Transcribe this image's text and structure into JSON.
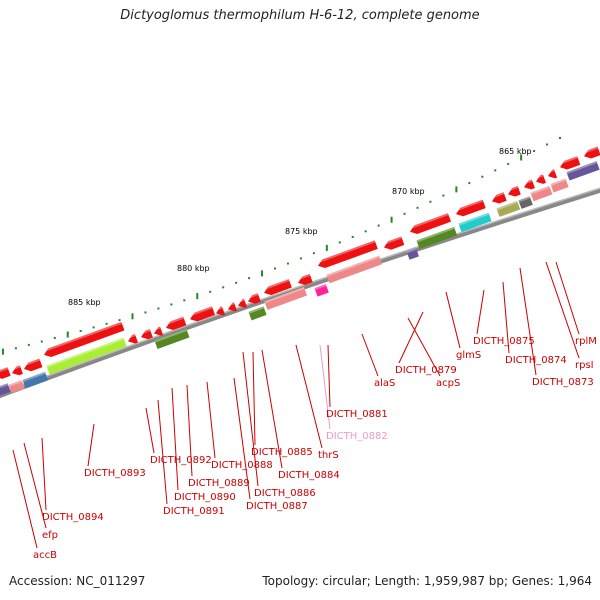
{
  "title": "Dictyoglomus thermophilum H-6-12, complete genome",
  "accession": "Accession: NC_011297",
  "summary": "Topology: circular; Length: 1,959,987 bp; Genes: 1,964",
  "scale_labels": [
    "865 kbp",
    "870 kbp",
    "875 kbp",
    "880 kbp",
    "885 kbp"
  ],
  "colors": {
    "backbone": "#888888",
    "gene_red": "#ee1111",
    "gene_pink": "#ee8888",
    "gene_lime": "#aaee33",
    "gene_green": "#558822",
    "gene_cyan": "#22cccc",
    "gene_purple": "#665599",
    "gene_olive": "#aaaa55",
    "gene_magenta": "#ff2299",
    "gene_blue": "#4477aa",
    "label_red": "#cc0000",
    "label_pink": "#ee99cc",
    "tick_green": "#228822"
  },
  "gene_labels": [
    {
      "text": "rplM"
    },
    {
      "text": "rpsI"
    },
    {
      "text": "DICTH_0873"
    },
    {
      "text": "DICTH_0874"
    },
    {
      "text": "DICTH_0875"
    },
    {
      "text": "glmS"
    },
    {
      "text": "DICTH_0879"
    },
    {
      "text": "acpS"
    },
    {
      "text": "alaS"
    },
    {
      "text": "DICTH_0881"
    },
    {
      "text": "DICTH_0882"
    },
    {
      "text": "thrS"
    },
    {
      "text": "DICTH_0884"
    },
    {
      "text": "DICTH_0885"
    },
    {
      "text": "DICTH_0886"
    },
    {
      "text": "DICTH_0887"
    },
    {
      "text": "DICTH_0888"
    },
    {
      "text": "DICTH_0889"
    },
    {
      "text": "DICTH_0890"
    },
    {
      "text": "DICTH_0891"
    },
    {
      "text": "DICTH_0892"
    },
    {
      "text": "DICTH_0893"
    },
    {
      "text": "DICTH_0894"
    },
    {
      "text": "efp"
    },
    {
      "text": "accB"
    }
  ]
}
